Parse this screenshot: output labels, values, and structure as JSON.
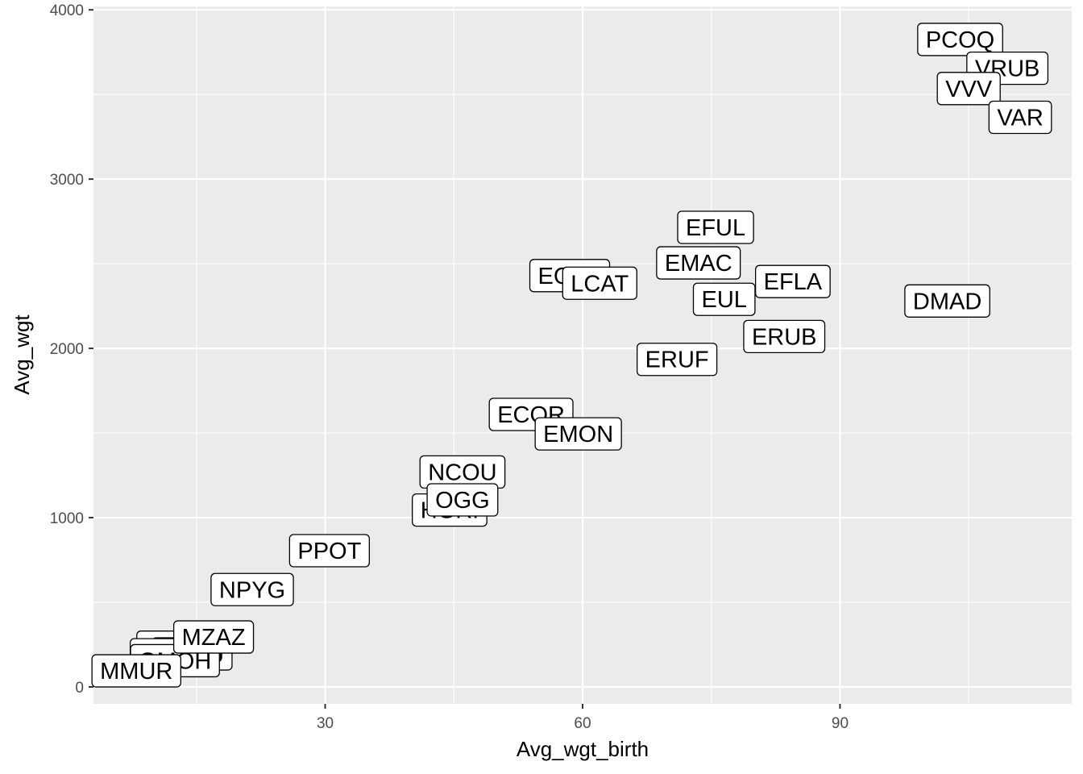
{
  "chart_data": {
    "type": "scatter",
    "xlabel": "Avg_wgt_birth",
    "ylabel": "Avg_wgt",
    "xlim": [
      3,
      117
    ],
    "ylim": [
      -100,
      4020
    ],
    "x_ticks": [
      30,
      60,
      90
    ],
    "x_tick_labels": [
      "30",
      "60",
      "90"
    ],
    "y_ticks": [
      0,
      1000,
      2000,
      3000,
      4000
    ],
    "y_tick_labels": [
      "0",
      "1000",
      "2000",
      "3000",
      "4000"
    ],
    "grid": true,
    "panel_background": "#ebebeb",
    "grid_color": "#ffffff",
    "label_style": "boxed-text",
    "points": [
      {
        "label": "PCOQ",
        "x": 104,
        "y": 3825
      },
      {
        "label": "VRUB",
        "x": 109.5,
        "y": 3655
      },
      {
        "label": "VVV",
        "x": 105,
        "y": 3535
      },
      {
        "label": "VAR",
        "x": 111,
        "y": 3365
      },
      {
        "label": "EFUL",
        "x": 75.5,
        "y": 2715
      },
      {
        "label": "EMAC",
        "x": 73.5,
        "y": 2505
      },
      {
        "label": "ECOL",
        "x": 58.5,
        "y": 2430
      },
      {
        "label": "LCAT",
        "x": 62,
        "y": 2385
      },
      {
        "label": "EFLA",
        "x": 84.5,
        "y": 2395
      },
      {
        "label": "EUL",
        "x": 76.5,
        "y": 2290
      },
      {
        "label": "DMAD",
        "x": 102.5,
        "y": 2280
      },
      {
        "label": "ERUB",
        "x": 83.5,
        "y": 2070
      },
      {
        "label": "ERUF",
        "x": 71,
        "y": 1935
      },
      {
        "label": "ECOR",
        "x": 54,
        "y": 1610
      },
      {
        "label": "EMON",
        "x": 59.5,
        "y": 1495
      },
      {
        "label": "NCOU",
        "x": 46,
        "y": 1270
      },
      {
        "label": "HGRI",
        "x": 44.5,
        "y": 1045
      },
      {
        "label": "OGG",
        "x": 46,
        "y": 1105
      },
      {
        "label": "PPOT",
        "x": 30.5,
        "y": 805
      },
      {
        "label": "NPYG",
        "x": 21.5,
        "y": 575
      },
      {
        "label": "CMED",
        "x": 13,
        "y": 235
      },
      {
        "label": "CMAJ",
        "x": 14.5,
        "y": 195
      },
      {
        "label": "LTAR",
        "x": 11.5,
        "y": 190
      },
      {
        "label": "GMOH",
        "x": 12.5,
        "y": 155
      },
      {
        "label": "MZAZ",
        "x": 17,
        "y": 295
      },
      {
        "label": "MMUR",
        "x": 8,
        "y": 95
      }
    ]
  }
}
